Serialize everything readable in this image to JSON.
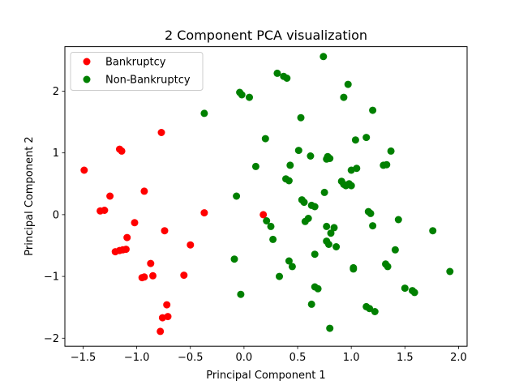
{
  "chart_data": {
    "type": "scatter",
    "title": "2 Component PCA visualization",
    "xlabel": "Principal Component 1",
    "ylabel": "Principal Component 2",
    "xlim": [
      -1.67,
      2.08
    ],
    "ylim": [
      -2.13,
      2.72
    ],
    "xticks": [
      -1.5,
      -1.0,
      -0.5,
      0.0,
      0.5,
      1.0,
      1.5,
      2.0
    ],
    "xtick_labels": [
      "−1.5",
      "−1.0",
      "−0.5",
      "0.0",
      "0.5",
      "1.0",
      "1.5",
      "2.0"
    ],
    "yticks": [
      -2,
      -1,
      0,
      1,
      2
    ],
    "ytick_labels": [
      "−2",
      "−1",
      "0",
      "1",
      "2"
    ],
    "grid": false,
    "legend_position": "upper-left",
    "series": [
      {
        "name": "Bankruptcy",
        "color": "#ff0000",
        "points": [
          [
            -1.49,
            0.72
          ],
          [
            -1.16,
            1.06
          ],
          [
            -1.14,
            1.03
          ],
          [
            -0.77,
            1.33
          ],
          [
            -1.25,
            0.3
          ],
          [
            -0.93,
            0.38
          ],
          [
            -1.34,
            0.06
          ],
          [
            -1.3,
            0.07
          ],
          [
            -1.02,
            -0.13
          ],
          [
            -0.37,
            0.03
          ],
          [
            -0.74,
            -0.26
          ],
          [
            -1.09,
            -0.37
          ],
          [
            -0.5,
            -0.49
          ],
          [
            -1.2,
            -0.6
          ],
          [
            -1.16,
            -0.58
          ],
          [
            -1.13,
            -0.57
          ],
          [
            -1.1,
            -0.56
          ],
          [
            -0.87,
            -0.79
          ],
          [
            -0.95,
            -1.02
          ],
          [
            -0.93,
            -1.01
          ],
          [
            -0.85,
            -0.99
          ],
          [
            -0.56,
            -0.98
          ],
          [
            -0.72,
            -1.46
          ],
          [
            -0.76,
            -1.67
          ],
          [
            -0.71,
            -1.65
          ],
          [
            -0.78,
            -1.89
          ],
          [
            0.18,
            0.0
          ]
        ]
      },
      {
        "name": "Non-Bankruptcy",
        "color": "#008000",
        "points": [
          [
            0.74,
            2.56
          ],
          [
            0.31,
            2.29
          ],
          [
            0.37,
            2.24
          ],
          [
            0.4,
            2.21
          ],
          [
            0.97,
            2.11
          ],
          [
            -0.04,
            1.98
          ],
          [
            -0.02,
            1.94
          ],
          [
            0.05,
            1.9
          ],
          [
            0.93,
            1.9
          ],
          [
            1.2,
            1.69
          ],
          [
            -0.37,
            1.64
          ],
          [
            0.53,
            1.57
          ],
          [
            0.2,
            1.23
          ],
          [
            1.14,
            1.25
          ],
          [
            1.04,
            1.21
          ],
          [
            0.51,
            1.04
          ],
          [
            1.37,
            1.03
          ],
          [
            0.62,
            0.95
          ],
          [
            0.78,
            0.94
          ],
          [
            0.77,
            0.9
          ],
          [
            0.8,
            0.91
          ],
          [
            0.11,
            0.78
          ],
          [
            0.43,
            0.8
          ],
          [
            1.3,
            0.8
          ],
          [
            1.33,
            0.81
          ],
          [
            1.05,
            0.75
          ],
          [
            1.0,
            0.72
          ],
          [
            0.39,
            0.58
          ],
          [
            0.42,
            0.55
          ],
          [
            0.91,
            0.54
          ],
          [
            0.93,
            0.49
          ],
          [
            0.95,
            0.47
          ],
          [
            0.98,
            0.5
          ],
          [
            1.0,
            0.47
          ],
          [
            0.75,
            0.36
          ],
          [
            -0.07,
            0.3
          ],
          [
            0.54,
            0.24
          ],
          [
            0.56,
            0.2
          ],
          [
            0.63,
            0.15
          ],
          [
            0.66,
            0.13
          ],
          [
            1.16,
            0.05
          ],
          [
            1.18,
            0.02
          ],
          [
            0.21,
            -0.1
          ],
          [
            0.57,
            -0.11
          ],
          [
            0.6,
            -0.06
          ],
          [
            1.44,
            -0.08
          ],
          [
            0.25,
            -0.19
          ],
          [
            0.77,
            -0.19
          ],
          [
            0.84,
            -0.21
          ],
          [
            1.2,
            -0.18
          ],
          [
            1.76,
            -0.26
          ],
          [
            0.81,
            -0.3
          ],
          [
            0.27,
            -0.4
          ],
          [
            0.77,
            -0.43
          ],
          [
            0.79,
            -0.48
          ],
          [
            0.86,
            -0.52
          ],
          [
            1.41,
            -0.57
          ],
          [
            0.66,
            -0.64
          ],
          [
            -0.09,
            -0.72
          ],
          [
            0.42,
            -0.75
          ],
          [
            0.45,
            -0.84
          ],
          [
            1.32,
            -0.8
          ],
          [
            1.34,
            -0.84
          ],
          [
            1.02,
            -0.86
          ],
          [
            1.02,
            -0.88
          ],
          [
            1.92,
            -0.92
          ],
          [
            0.33,
            -1.0
          ],
          [
            0.66,
            -1.17
          ],
          [
            0.69,
            -1.2
          ],
          [
            1.5,
            -1.19
          ],
          [
            1.57,
            -1.23
          ],
          [
            1.59,
            -1.26
          ],
          [
            -0.03,
            -1.29
          ],
          [
            0.63,
            -1.45
          ],
          [
            1.14,
            -1.49
          ],
          [
            1.17,
            -1.52
          ],
          [
            1.22,
            -1.57
          ],
          [
            0.8,
            -1.84
          ]
        ]
      }
    ]
  }
}
